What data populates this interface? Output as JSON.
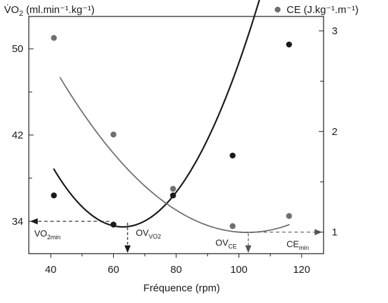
{
  "chart_data": {
    "type": "scatter",
    "xlabel": "Fréquence (rpm)",
    "x_ticks": [
      "40",
      "60",
      "80",
      "100",
      "120"
    ],
    "xlim": [
      33,
      127
    ],
    "left_axis": {
      "label_prefix": "V̇O",
      "label_sub": "2",
      "label_suffix": " (ml.min⁻¹.kg⁻¹)",
      "ylim": [
        31,
        53
      ],
      "ticks": [
        "34",
        "42",
        "50"
      ],
      "tick_values": [
        34,
        42,
        50
      ],
      "minor_tick_values": [
        38,
        46
      ]
    },
    "right_axis": {
      "label": "CE (J.kg⁻¹.m⁻¹)",
      "legend_marker": "filled-circle-gray",
      "ylim": [
        0.786,
        3.143
      ],
      "ticks": [
        "1",
        "2",
        "3"
      ],
      "tick_values": [
        1,
        2,
        3
      ],
      "minor_tick_values": [
        1.5,
        2.5
      ]
    },
    "series": [
      {
        "name": "V̇O2",
        "axis": "left",
        "color": "#1a1a1a",
        "points": [
          {
            "x": 41,
            "y": 36.4
          },
          {
            "x": 60,
            "y": 33.7
          },
          {
            "x": 79,
            "y": 36.4
          },
          {
            "x": 98,
            "y": 40.1
          },
          {
            "x": 116,
            "y": 50.4
          }
        ],
        "fit_curve": {
          "type": "quadratic",
          "a": 0.0111,
          "b": -1.398,
          "c": 77.5,
          "x_range": [
            41,
            116
          ]
        }
      },
      {
        "name": "CE",
        "axis": "right",
        "color": "#6f6f6f",
        "points": [
          {
            "x": 41,
            "y": 2.93
          },
          {
            "x": 60,
            "y": 1.97
          },
          {
            "x": 79,
            "y": 1.43
          },
          {
            "x": 98,
            "y": 1.06
          },
          {
            "x": 116,
            "y": 1.16
          }
        ],
        "fit_curve": {
          "type": "quadratic",
          "a": 0.000432,
          "b": -0.0887,
          "c": 5.55,
          "x_range": [
            43,
            116
          ]
        }
      }
    ],
    "annotations": {
      "vo2_min": {
        "text": "VO",
        "sub": "2min",
        "value": 34
      },
      "ov_vo2": {
        "text": "OV",
        "sub": "VO2",
        "x": 64.5
      },
      "ov_ce": {
        "text": "OV",
        "sub": "CE",
        "x": 103
      },
      "ce_min": {
        "text": "CE",
        "sub": "min",
        "value": 1
      }
    }
  }
}
